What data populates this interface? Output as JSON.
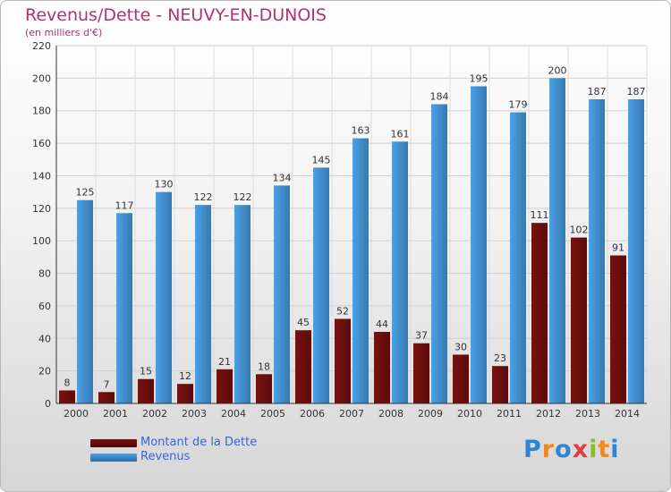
{
  "header": {
    "title": "Revenus/Dette - NEUVY-EN-DUNOIS",
    "subtitle": "(en milliers d'€)"
  },
  "legend": {
    "items": [
      {
        "label": "Montant de la Dette",
        "color": "#7a1010"
      },
      {
        "label": "Revenus",
        "color": "#4aa1e8"
      }
    ]
  },
  "logo": {
    "text": "Proxiti",
    "letters": [
      {
        "ch": "P",
        "color": "#2e86d0"
      },
      {
        "ch": "r",
        "color": "#f08a1c"
      },
      {
        "ch": "o",
        "color": "#2e86d0"
      },
      {
        "ch": "x",
        "color": "#e23c3c"
      },
      {
        "ch": "i",
        "color": "#8cbf26"
      },
      {
        "ch": "t",
        "color": "#f08a1c"
      },
      {
        "ch": "i",
        "color": "#2e86d0"
      }
    ]
  },
  "chart_data": {
    "type": "bar",
    "categories": [
      "2000",
      "2001",
      "2002",
      "2003",
      "2004",
      "2005",
      "2006",
      "2007",
      "2008",
      "2009",
      "2010",
      "2011",
      "2012",
      "2013",
      "2014"
    ],
    "series": [
      {
        "name": "Montant de la Dette",
        "color": "#7a1010",
        "values": [
          8,
          7,
          15,
          12,
          21,
          18,
          45,
          52,
          44,
          37,
          30,
          23,
          111,
          102,
          91
        ]
      },
      {
        "name": "Revenus",
        "color": "#4aa1e8",
        "values": [
          125,
          117,
          130,
          122,
          122,
          134,
          145,
          163,
          161,
          184,
          195,
          179,
          200,
          187,
          187
        ]
      }
    ],
    "ylim": [
      0,
      220
    ],
    "yticks": [
      0,
      20,
      40,
      60,
      80,
      100,
      120,
      140,
      160,
      180,
      200,
      220
    ],
    "grid": true,
    "legend_position": "bottom-left"
  }
}
